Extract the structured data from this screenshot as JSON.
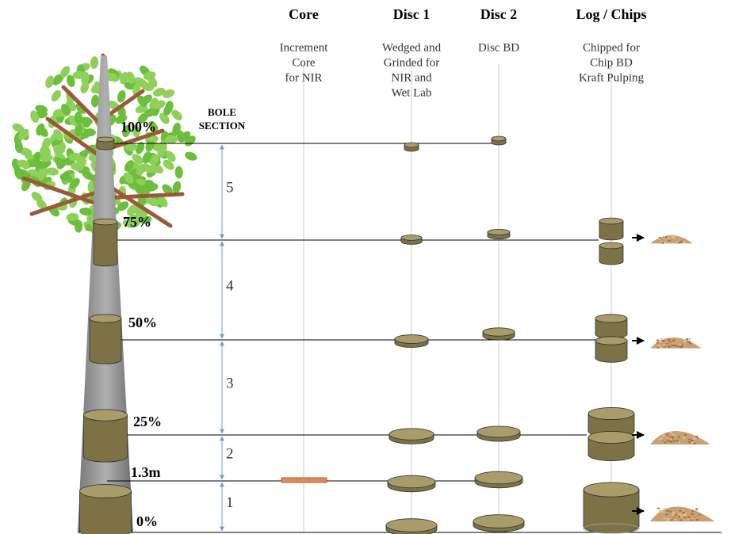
{
  "columns": [
    {
      "title": "Core",
      "description": [
        "Increment",
        "Core",
        "for NIR"
      ]
    },
    {
      "title": "Disc 1",
      "description": [
        "Wedged and",
        "Grinded for",
        "NIR and",
        "Wet Lab"
      ]
    },
    {
      "title": "Disc 2",
      "description": [
        "Disc BD"
      ]
    },
    {
      "title": "Log / Chips",
      "description": [
        "Chipped for",
        "Chip BD",
        "Kraft Pulping"
      ]
    }
  ],
  "heights": [
    "100%",
    "75%",
    "50%",
    "25%",
    "1.3m",
    "0%"
  ],
  "bole_section": {
    "label": [
      "BOLE",
      "SECTION"
    ],
    "sections": [
      "5",
      "4",
      "3",
      "2",
      "1"
    ]
  }
}
